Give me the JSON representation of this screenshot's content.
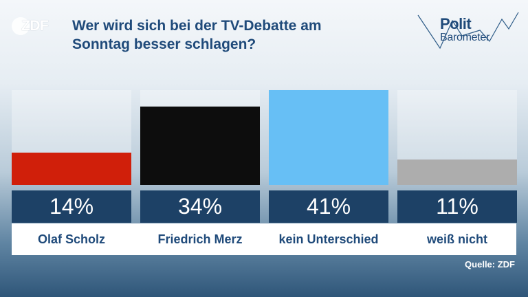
{
  "header": {
    "logo_text": "ZDF",
    "title_line1": "Wer wird sich bei der TV-Debatte am",
    "title_line2": "Sonntag besser schlagen?",
    "politbarometer_line1": "Polit",
    "politbarometer_line2": "Barometer"
  },
  "chart_data": {
    "type": "bar",
    "title": "Wer wird sich bei der TV-Debatte am Sonntag besser schlagen?",
    "categories": [
      "Olaf Scholz",
      "Friedrich Merz",
      "kein Unterschied",
      "weiß nicht"
    ],
    "values": [
      14,
      34,
      41,
      11
    ],
    "value_labels": [
      "14%",
      "34%",
      "41%",
      "11%"
    ],
    "colors": [
      "#d01f0a",
      "#0d0d0d",
      "#67bff5",
      "#adadad"
    ],
    "ylim": [
      0,
      41
    ],
    "grid": false,
    "legend": "none"
  },
  "footer": {
    "source": "Quelle: ZDF"
  }
}
